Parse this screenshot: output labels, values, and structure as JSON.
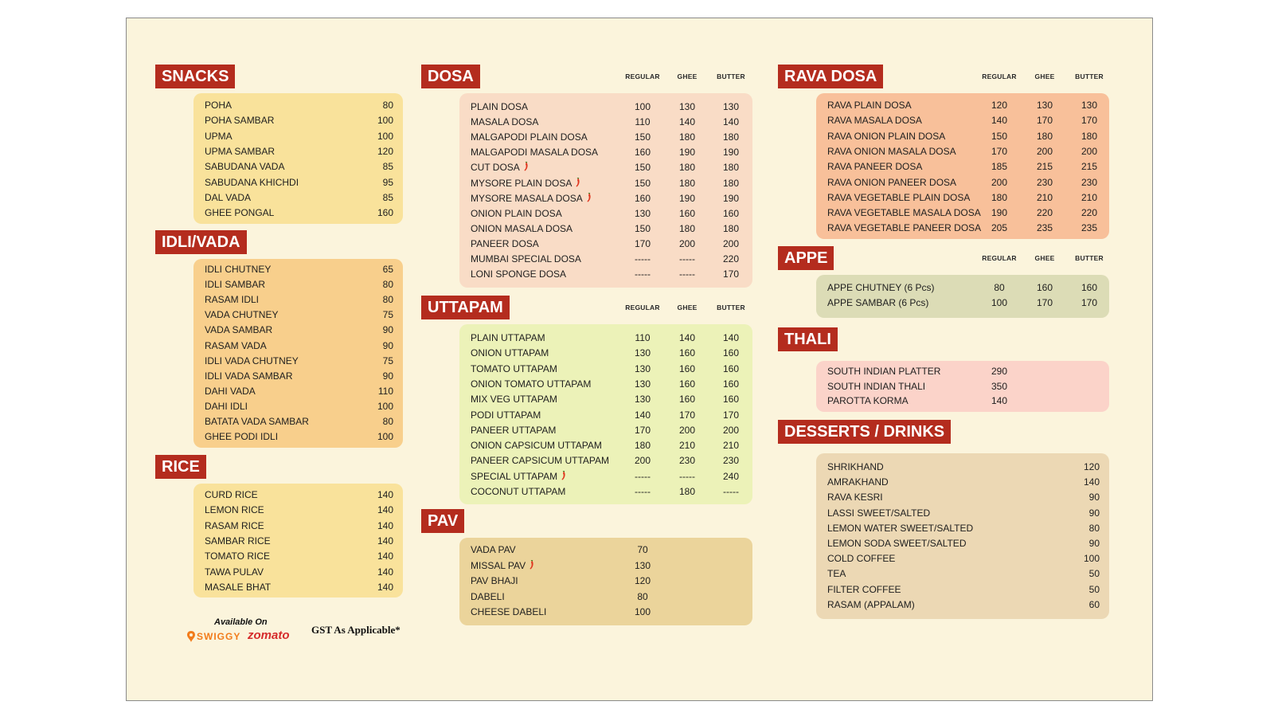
{
  "colors": {
    "header": "#b42c1e",
    "background": "#fbf4dc"
  },
  "snacks": {
    "title": "SNACKS",
    "items": [
      {
        "name": "POHA",
        "price": "80"
      },
      {
        "name": "POHA SAMBAR",
        "price": "100"
      },
      {
        "name": "UPMA",
        "price": "100"
      },
      {
        "name": "UPMA SAMBAR",
        "price": "120"
      },
      {
        "name": "SABUDANA VADA",
        "price": "85"
      },
      {
        "name": "SABUDANA KHICHDI",
        "price": "95"
      },
      {
        "name": "DAL VADA",
        "price": "85"
      },
      {
        "name": "GHEE PONGAL",
        "price": "160"
      }
    ]
  },
  "idli_vada": {
    "title": "IDLI/VADA",
    "items": [
      {
        "name": "IDLI CHUTNEY",
        "price": "65"
      },
      {
        "name": "IDLI SAMBAR",
        "price": "80"
      },
      {
        "name": "RASAM IDLI",
        "price": "80"
      },
      {
        "name": "VADA CHUTNEY",
        "price": "75"
      },
      {
        "name": "VADA SAMBAR",
        "price": "90"
      },
      {
        "name": "RASAM VADA",
        "price": "90"
      },
      {
        "name": "IDLI VADA CHUTNEY",
        "price": "75"
      },
      {
        "name": "IDLI VADA SAMBAR",
        "price": "90"
      },
      {
        "name": "DAHI VADA",
        "price": "110"
      },
      {
        "name": "DAHI IDLI",
        "price": "100"
      },
      {
        "name": "BATATA VADA SAMBAR",
        "price": "80"
      },
      {
        "name": "GHEE PODI IDLI",
        "price": "100"
      }
    ]
  },
  "rice": {
    "title": "RICE",
    "items": [
      {
        "name": "CURD RICE",
        "price": "140"
      },
      {
        "name": "LEMON RICE",
        "price": "140"
      },
      {
        "name": "RASAM RICE",
        "price": "140"
      },
      {
        "name": "SAMBAR RICE",
        "price": "140"
      },
      {
        "name": "TOMATO RICE",
        "price": "140"
      },
      {
        "name": "TAWA PULAV",
        "price": "140"
      },
      {
        "name": "MASALE BHAT",
        "price": "140"
      }
    ]
  },
  "dosa": {
    "title": "DOSA",
    "columns": [
      "REGULAR",
      "GHEE",
      "BUTTER"
    ],
    "items": [
      {
        "name": "PLAIN DOSA",
        "spicy": false,
        "regular": "100",
        "ghee": "130",
        "butter": "130"
      },
      {
        "name": "MASALA DOSA",
        "spicy": false,
        "regular": "110",
        "ghee": "140",
        "butter": "140"
      },
      {
        "name": "MALGAPODI PLAIN DOSA",
        "spicy": false,
        "regular": "150",
        "ghee": "180",
        "butter": "180"
      },
      {
        "name": "MALGAPODI MASALA DOSA",
        "spicy": false,
        "regular": "160",
        "ghee": "190",
        "butter": "190"
      },
      {
        "name": "CUT DOSA",
        "spicy": true,
        "regular": "150",
        "ghee": "180",
        "butter": "180"
      },
      {
        "name": "MYSORE PLAIN DOSA",
        "spicy": true,
        "regular": "150",
        "ghee": "180",
        "butter": "180"
      },
      {
        "name": "MYSORE MASALA DOSA",
        "spicy": true,
        "regular": "160",
        "ghee": "190",
        "butter": "190"
      },
      {
        "name": "ONION PLAIN DOSA",
        "spicy": false,
        "regular": "130",
        "ghee": "160",
        "butter": "160"
      },
      {
        "name": "ONION MASALA DOSA",
        "spicy": false,
        "regular": "150",
        "ghee": "180",
        "butter": "180"
      },
      {
        "name": "PANEER DOSA",
        "spicy": false,
        "regular": "170",
        "ghee": "200",
        "butter": "200"
      },
      {
        "name": "MUMBAI SPECIAL DOSA",
        "spicy": false,
        "regular": "-----",
        "ghee": "-----",
        "butter": "220"
      },
      {
        "name": "LONI SPONGE DOSA",
        "spicy": false,
        "regular": "-----",
        "ghee": "-----",
        "butter": "170"
      }
    ]
  },
  "uttapam": {
    "title": "UTTAPAM",
    "columns": [
      "REGULAR",
      "GHEE",
      "BUTTER"
    ],
    "items": [
      {
        "name": "PLAIN UTTAPAM",
        "spicy": false,
        "regular": "110",
        "ghee": "140",
        "butter": "140"
      },
      {
        "name": "ONION UTTAPAM",
        "spicy": false,
        "regular": "130",
        "ghee": "160",
        "butter": "160"
      },
      {
        "name": "TOMATO UTTAPAM",
        "spicy": false,
        "regular": "130",
        "ghee": "160",
        "butter": "160"
      },
      {
        "name": "ONION TOMATO UTTAPAM",
        "spicy": false,
        "regular": "130",
        "ghee": "160",
        "butter": "160"
      },
      {
        "name": "MIX VEG UTTAPAM",
        "spicy": false,
        "regular": "130",
        "ghee": "160",
        "butter": "160"
      },
      {
        "name": "PODI UTTAPAM",
        "spicy": false,
        "regular": "140",
        "ghee": "170",
        "butter": "170"
      },
      {
        "name": "PANEER UTTAPAM",
        "spicy": false,
        "regular": "170",
        "ghee": "200",
        "butter": "200"
      },
      {
        "name": "ONION CAPSICUM UTTAPAM",
        "spicy": false,
        "regular": "180",
        "ghee": "210",
        "butter": "210"
      },
      {
        "name": "PANEER CAPSICUM UTTAPAM",
        "spicy": false,
        "regular": "200",
        "ghee": "230",
        "butter": "230"
      },
      {
        "name": "SPECIAL UTTAPAM",
        "spicy": true,
        "regular": "-----",
        "ghee": "-----",
        "butter": "240"
      },
      {
        "name": "COCONUT UTTAPAM",
        "spicy": false,
        "regular": "-----",
        "ghee": "180",
        "butter": "-----"
      }
    ]
  },
  "pav": {
    "title": "PAV",
    "items": [
      {
        "name": "VADA PAV",
        "spicy": false,
        "price": "70"
      },
      {
        "name": "MISSAL PAV",
        "spicy": true,
        "price": "130"
      },
      {
        "name": "PAV BHAJI",
        "spicy": false,
        "price": "120"
      },
      {
        "name": "DABELI",
        "spicy": false,
        "price": "80"
      },
      {
        "name": "CHEESE DABELI",
        "spicy": false,
        "price": "100"
      }
    ]
  },
  "rava_dosa": {
    "title": "RAVA DOSA",
    "columns": [
      "REGULAR",
      "GHEE",
      "BUTTER"
    ],
    "items": [
      {
        "name": "RAVA PLAIN DOSA",
        "regular": "120",
        "ghee": "130",
        "butter": "130"
      },
      {
        "name": "RAVA MASALA DOSA",
        "regular": "140",
        "ghee": "170",
        "butter": "170"
      },
      {
        "name": "RAVA ONION PLAIN DOSA",
        "regular": "150",
        "ghee": "180",
        "butter": "180"
      },
      {
        "name": "RAVA ONION MASALA DOSA",
        "regular": "170",
        "ghee": "200",
        "butter": "200"
      },
      {
        "name": "RAVA PANEER DOSA",
        "regular": "185",
        "ghee": "215",
        "butter": "215"
      },
      {
        "name": "RAVA ONION PANEER DOSA",
        "regular": "200",
        "ghee": "230",
        "butter": "230"
      },
      {
        "name": "RAVA VEGETABLE PLAIN DOSA",
        "regular": "180",
        "ghee": "210",
        "butter": "210"
      },
      {
        "name": "RAVA VEGETABLE MASALA DOSA",
        "regular": "190",
        "ghee": "220",
        "butter": "220"
      },
      {
        "name": "RAVA VEGETABLE PANEER DOSA",
        "regular": "205",
        "ghee": "235",
        "butter": "235"
      }
    ]
  },
  "appe": {
    "title": "APPE",
    "columns": [
      "REGULAR",
      "GHEE",
      "BUTTER"
    ],
    "items": [
      {
        "name": "APPE CHUTNEY (6 Pcs)",
        "regular": "80",
        "ghee": "160",
        "butter": "160"
      },
      {
        "name": "APPE SAMBAR (6 Pcs)",
        "regular": "100",
        "ghee": "170",
        "butter": "170"
      }
    ]
  },
  "thali": {
    "title": "THALI",
    "items": [
      {
        "name": "SOUTH INDIAN PLATTER",
        "price": "290"
      },
      {
        "name": "SOUTH INDIAN THALI",
        "price": "350"
      },
      {
        "name": "PAROTTA KORMA",
        "price": "140"
      }
    ]
  },
  "desserts": {
    "title": "DESSERTS / DRINKS",
    "items": [
      {
        "name": "SHRIKHAND",
        "price": "120"
      },
      {
        "name": "AMRAKHAND",
        "price": "140"
      },
      {
        "name": "RAVA KESRI",
        "price": "90"
      },
      {
        "name": "LASSI SWEET/SALTED",
        "price": "90"
      },
      {
        "name": "LEMON WATER SWEET/SALTED",
        "price": "80"
      },
      {
        "name": "LEMON SODA SWEET/SALTED",
        "price": "90"
      },
      {
        "name": "COLD COFFEE",
        "price": "100"
      },
      {
        "name": "TEA",
        "price": "50"
      },
      {
        "name": "FILTER COFFEE",
        "price": "50"
      },
      {
        "name": "RASAM (APPALAM)",
        "price": "60"
      }
    ]
  },
  "footer": {
    "available_on": "Available On",
    "swiggy": "SWIGGY",
    "zomato": "zomato",
    "gst": "GST As Applicable*"
  }
}
